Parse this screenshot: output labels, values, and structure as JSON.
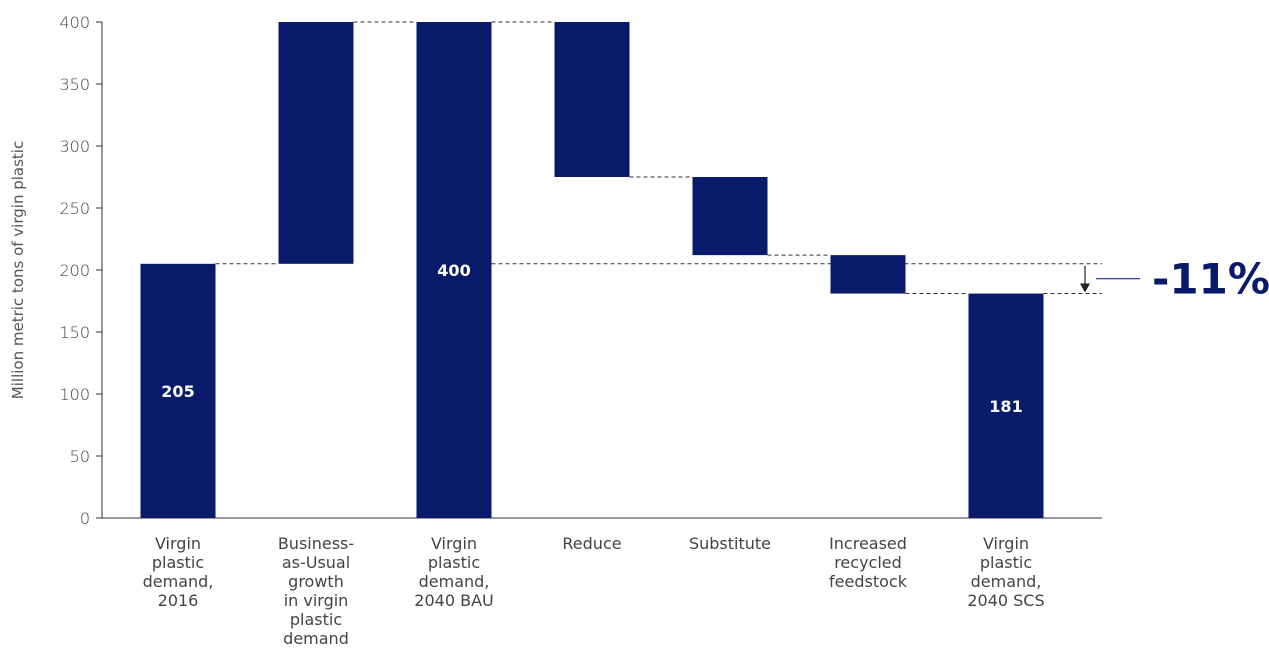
{
  "chart_data": {
    "type": "bar",
    "subtype": "waterfall",
    "ylabel": "Million metric tons of virgin plastic",
    "ylim": [
      0,
      400
    ],
    "yticks": [
      0,
      50,
      100,
      150,
      200,
      250,
      300,
      350,
      400
    ],
    "grid": false,
    "bar_color": "#0a1a6a",
    "categories": [
      [
        "Virgin",
        "plastic",
        "demand,",
        "2016"
      ],
      [
        "Business-",
        "as-Usual",
        "growth",
        "in virgin",
        "plastic",
        "demand"
      ],
      [
        "Virgin",
        "plastic",
        "demand,",
        "2040 BAU"
      ],
      [
        "Reduce"
      ],
      [
        "Substitute"
      ],
      [
        "Increased",
        "recycled",
        "feedstock"
      ],
      [
        "Virgin",
        "plastic",
        "demand,",
        "2040 SCS"
      ]
    ],
    "bars": [
      {
        "start": 0,
        "end": 205,
        "label": "205"
      },
      {
        "start": 205,
        "end": 400,
        "label": ""
      },
      {
        "start": 0,
        "end": 400,
        "label": "400"
      },
      {
        "start": 400,
        "end": 275,
        "label": ""
      },
      {
        "start": 275,
        "end": 212,
        "label": ""
      },
      {
        "start": 212,
        "end": 181,
        "label": ""
      },
      {
        "start": 0,
        "end": 181,
        "label": "181"
      }
    ],
    "annotation": {
      "text": "-11%",
      "from": 205,
      "to": 181
    }
  }
}
